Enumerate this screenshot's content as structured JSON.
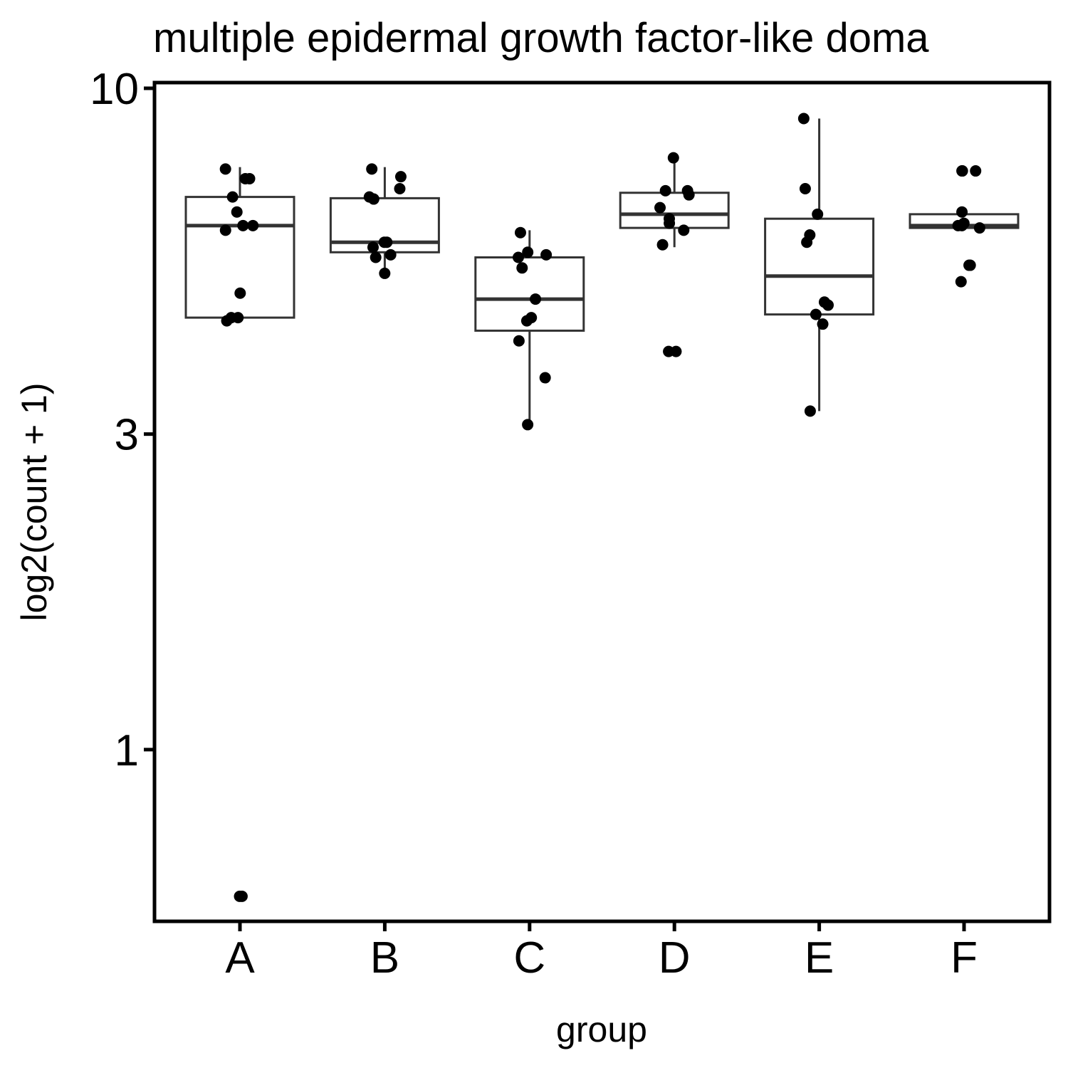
{
  "chart_data": {
    "type": "box",
    "title": "multiple epidermal growth factor-like doma",
    "xlabel": "group",
    "ylabel": "log2(count + 1)",
    "y_scale": "log",
    "ylim": [
      0.55,
      10.2
    ],
    "y_ticks": [
      10,
      3,
      1
    ],
    "y_tick_labels": [
      "10",
      "3",
      "1"
    ],
    "grid": false,
    "legend": "none",
    "categories": [
      "A",
      "B",
      "C",
      "D",
      "E",
      "F"
    ],
    "colors": {
      "box": "#333333",
      "point": "#000000",
      "axis": "#000000",
      "background": "#ffffff"
    },
    "boxes": [
      {
        "group": "A",
        "min": 4.45,
        "q1": 4.5,
        "median": 6.2,
        "q3": 6.85,
        "max": 7.6
      },
      {
        "group": "B",
        "min": 5.25,
        "q1": 5.65,
        "median": 5.85,
        "q3": 6.82,
        "max": 7.6
      },
      {
        "group": "C",
        "min": 3.1,
        "q1": 4.3,
        "median": 4.8,
        "q3": 5.55,
        "max": 6.1
      },
      {
        "group": "D",
        "min": 5.75,
        "q1": 6.15,
        "median": 6.45,
        "q3": 6.95,
        "max": 7.85
      },
      {
        "group": "E",
        "min": 3.25,
        "q1": 4.55,
        "median": 5.2,
        "q3": 6.35,
        "max": 9.0
      },
      {
        "group": "F",
        "min": 6.15,
        "q1": 6.15,
        "median": 6.2,
        "q3": 6.45,
        "max": 6.45
      }
    ],
    "points": [
      {
        "group": "A",
        "values": [
          0.6,
          0.6,
          4.45,
          4.5,
          4.5,
          4.9,
          6.1,
          6.2,
          6.2,
          6.5,
          6.85,
          7.3,
          7.3,
          7.55
        ]
      },
      {
        "group": "B",
        "values": [
          5.25,
          5.55,
          5.6,
          5.75,
          5.85,
          5.85,
          6.8,
          6.85,
          7.05,
          7.35,
          7.55
        ]
      },
      {
        "group": "C",
        "values": [
          3.1,
          3.65,
          4.15,
          4.45,
          4.5,
          4.8,
          5.35,
          5.55,
          5.6,
          5.65,
          6.05
        ]
      },
      {
        "group": "D",
        "values": [
          4.0,
          4.0,
          5.8,
          6.1,
          6.25,
          6.35,
          6.6,
          6.9,
          7.0,
          7.0,
          7.85
        ]
      },
      {
        "group": "E",
        "values": [
          3.25,
          4.4,
          4.55,
          4.7,
          4.75,
          5.85,
          6.0,
          6.45,
          7.05,
          9.0
        ]
      },
      {
        "group": "F",
        "values": [
          5.1,
          5.4,
          5.4,
          6.15,
          6.2,
          6.2,
          6.25,
          6.5,
          7.5,
          7.5,
          7.5
        ]
      }
    ]
  }
}
